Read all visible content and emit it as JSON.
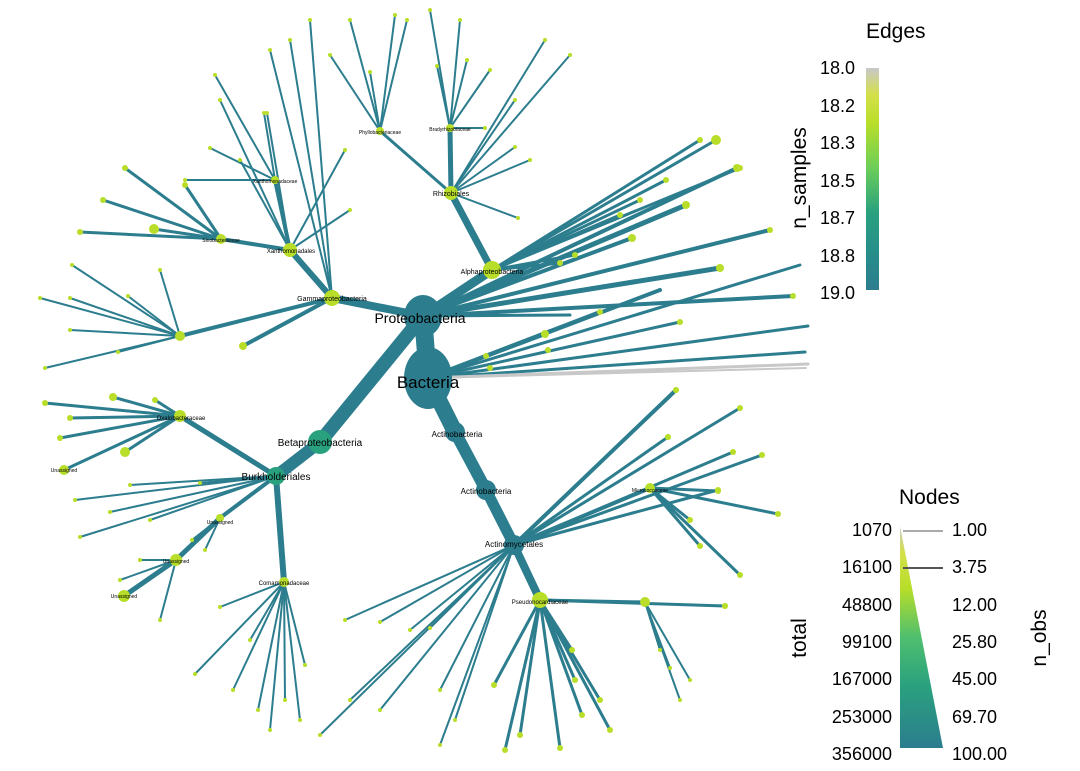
{
  "tree": {
    "root": "Bacteria",
    "main_labels": {
      "proteobacteria": "Proteobacteria",
      "bacteria": "Bacteria",
      "betaproteobacteria": "Betaproteobacteria",
      "burkholderiales": "Burkholderiales",
      "gammaproteobacteria": "Gammaproteobacteria",
      "alphaproteobacteria": "Alphaproteobacteria",
      "rhizobiales": "Rhizobiales",
      "actinobacteria_1": "Actinobacteria",
      "actinobacteria_2": "Actinobacteria",
      "actinomycetales": "Actinomycetales",
      "pseudonocardiaceae": "Pseudonocardiaceae",
      "comamonadaceae": "Comamonadaceae",
      "oxalobacteraceae": "Oxalobacteraceae",
      "xanthomonadales": "Xanthomonadales",
      "xanthomonadaceae": "Xanthomonadaceae",
      "sinobacteraceae": "Sinobacteraceae",
      "bradyrhizobiaceae": "Bradyrhizobiaceae",
      "phyllobacteriaceae": "Phyllobacteriaceae",
      "unassigned": "Unassigned",
      "micrococcaceae": "Micrococcaceae"
    }
  },
  "legend_edges": {
    "title": "Edges",
    "axis_title": "n_samples",
    "ticks": [
      "18.0",
      "18.2",
      "18.3",
      "18.5",
      "18.7",
      "18.8",
      "19.0"
    ]
  },
  "legend_nodes": {
    "title": "Nodes",
    "left_title": "total",
    "right_title": "n_obs",
    "left_ticks": [
      "1070",
      "16100",
      "48800",
      "99100",
      "167000",
      "253000",
      "356000"
    ],
    "right_ticks": [
      "1.00",
      "3.75",
      "12.00",
      "25.80",
      "45.00",
      "69.70",
      "100.00"
    ]
  },
  "colors": {
    "low": "#2c7d8e",
    "mid": "#2aa17e",
    "high": "#b8de29",
    "top": "#c8c8c8"
  }
}
